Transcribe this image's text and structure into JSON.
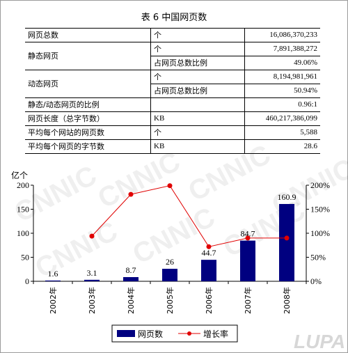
{
  "table": {
    "title": "表 6 中国网页数",
    "rows": [
      {
        "name": "网页总数",
        "unit": "个",
        "value": "16,086,370,233"
      },
      {
        "name": "静态网页",
        "unit": "个",
        "value": "7,891,388,272"
      },
      {
        "name": "",
        "unit": "占网页总数比例",
        "value": "49.06%"
      },
      {
        "name": "动态网页",
        "unit": "个",
        "value": "8,194,981,961"
      },
      {
        "name": "",
        "unit": "占网页总数比例",
        "value": "50.94%"
      },
      {
        "name": "静态/动态网页的比例",
        "unit": "",
        "value": "0.96:1"
      },
      {
        "name": "网页长度（总字节数）",
        "unit": "KB",
        "value": "460,217,386,099"
      },
      {
        "name": "平均每个网站的网页数",
        "unit": "个",
        "value": "5,588"
      },
      {
        "name": "平均每个网页的字节数",
        "unit": "KB",
        "value": "28.6"
      }
    ]
  },
  "chart_data": {
    "type": "bar",
    "categories": [
      "2002年",
      "2003年",
      "2004年",
      "2005年",
      "2006年",
      "2007年",
      "2008年"
    ],
    "y_unit_label": "亿个",
    "ylim": [
      0,
      200
    ],
    "yticks": [
      0,
      50,
      100,
      150,
      200
    ],
    "y2lim": [
      0,
      200
    ],
    "y2ticks": [
      "0%",
      "50%",
      "100%",
      "150%",
      "200%"
    ],
    "series": [
      {
        "name": "网页数",
        "type": "bar",
        "color": "#000080",
        "values": [
          1.6,
          3.1,
          8.7,
          26,
          44.7,
          84.7,
          160.9
        ],
        "labels": [
          "1.6",
          "3.1",
          "8.7",
          "26",
          "44.7",
          "84.7",
          "160.9"
        ]
      },
      {
        "name": "增长率",
        "type": "line",
        "color": "#e00000",
        "axis": "right",
        "values": [
          null,
          94,
          181,
          199,
          72,
          90,
          90
        ]
      }
    ],
    "legend": "bottom",
    "grid": false
  },
  "watermark": {
    "text": "CNNIC",
    "corner_logo": "LUPA"
  }
}
